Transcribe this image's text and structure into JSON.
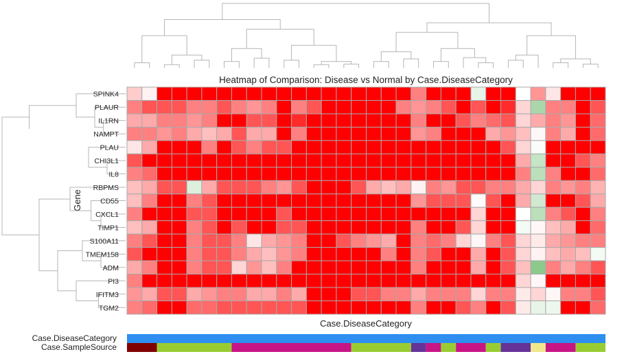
{
  "chart_data": {
    "type": "heatmap",
    "title": "Heatmap of Comparison: Disease vs Normal by Case.DiseaseCategory",
    "xlabel": "Case.DiseaseCategory",
    "ylabel": "Gene",
    "rows": [
      "SPINK4",
      "PLAUR",
      "IL1RN",
      "NAMPT",
      "PLAU",
      "CHI3L1",
      "IL8",
      "RBPMS",
      "CD55",
      "CXCL1",
      "TIMP1",
      "S100A11",
      "TMEM158",
      "ADM",
      "PI3",
      "IFITM3",
      "TGM2"
    ],
    "n_columns": 32,
    "value_scale": {
      "min": -2,
      "max": 6,
      "colors": {
        "negative": "#8dc98d",
        "zero": "#ffffff",
        "positive": "#ff0000"
      }
    },
    "values": [
      [
        1.2,
        0.3,
        6,
        6,
        6,
        6,
        6,
        6,
        6,
        6,
        6,
        6,
        6,
        6,
        6,
        6,
        6,
        6,
        6,
        3,
        6,
        6,
        6,
        -0.4,
        6,
        6,
        0,
        2.5,
        0.6,
        6,
        6,
        6
      ],
      [
        3,
        4,
        4,
        4,
        3,
        3,
        4,
        3,
        2.5,
        3,
        6,
        3,
        4,
        6,
        6,
        6,
        6,
        6,
        3,
        2.5,
        3,
        4,
        6,
        4,
        6,
        5,
        1,
        -1.5,
        3,
        3,
        6,
        4
      ],
      [
        2,
        2,
        3,
        3,
        2.5,
        3,
        6,
        6,
        4,
        4,
        6,
        5,
        6,
        6,
        6,
        6,
        6,
        6,
        6,
        3,
        6,
        6,
        4,
        3,
        3.5,
        4,
        1,
        2,
        3,
        2.5,
        6,
        3.5
      ],
      [
        3,
        3,
        2.5,
        3,
        2,
        1.5,
        2,
        4,
        2,
        2,
        6,
        3,
        6,
        6,
        6,
        6,
        6,
        6,
        6,
        2.5,
        3,
        6,
        6,
        6,
        2,
        2.5,
        1.5,
        0.2,
        3,
        2,
        6,
        3.5
      ],
      [
        0.6,
        2,
        6,
        6,
        6,
        3,
        6,
        4,
        3,
        4,
        4,
        6,
        6,
        6,
        6,
        6,
        6,
        6,
        6,
        6,
        6,
        6,
        6,
        6,
        6,
        4,
        1,
        -0.1,
        6,
        6,
        6,
        6
      ],
      [
        4,
        6,
        6,
        6,
        6,
        6,
        6,
        6,
        6,
        6,
        6,
        6,
        6,
        6,
        6,
        6,
        6,
        6,
        6,
        6,
        6,
        6,
        6,
        6,
        6,
        6,
        2,
        -1,
        6,
        6,
        4,
        3
      ],
      [
        3,
        3.5,
        6,
        6,
        6,
        6,
        6,
        6,
        6,
        6,
        6,
        6,
        6,
        6,
        6,
        6,
        6,
        6,
        6,
        6,
        6,
        6,
        6,
        6,
        6,
        6,
        3,
        -1.2,
        3,
        6,
        6,
        3.5
      ],
      [
        1.5,
        2,
        4,
        4,
        -0.6,
        2,
        4,
        4,
        4,
        3,
        2.5,
        4,
        6,
        6,
        6,
        4,
        2,
        1.5,
        2,
        0.3,
        3,
        2.5,
        4,
        4,
        3,
        3,
        2,
        1,
        3,
        2.5,
        3,
        1.8
      ],
      [
        1.5,
        3,
        6,
        6,
        3,
        4,
        6,
        6,
        6,
        6,
        6,
        6,
        6,
        6,
        6,
        6,
        6,
        6,
        6,
        2.5,
        4,
        4,
        4,
        0.1,
        4,
        6,
        2,
        -0.8,
        6,
        6,
        4,
        2
      ],
      [
        3,
        6,
        6,
        6,
        4,
        4,
        6,
        6,
        6,
        6,
        4,
        6,
        6,
        6,
        6,
        6,
        6,
        6,
        6,
        6,
        6,
        6,
        6,
        1,
        6,
        6,
        0,
        -1.2,
        3,
        4,
        6,
        3
      ],
      [
        1.5,
        2,
        6,
        6,
        3,
        4,
        6,
        4,
        6,
        6,
        4,
        4,
        6,
        6,
        6,
        6,
        6,
        6,
        6,
        3,
        6,
        6,
        4,
        1,
        6,
        6,
        -0.2,
        0.2,
        1.5,
        2,
        6,
        3.5
      ],
      [
        3,
        4,
        6,
        6,
        3,
        4,
        4,
        3,
        0.6,
        2,
        2.5,
        3,
        6,
        6,
        4,
        3,
        2.5,
        2,
        6,
        3,
        3.5,
        3,
        1,
        0.2,
        3,
        4,
        1,
        0.5,
        2,
        2.5,
        3,
        3
      ],
      [
        4,
        6,
        6,
        6,
        3,
        4,
        4,
        3,
        2,
        1.5,
        2.5,
        3,
        6,
        6,
        6,
        6,
        6,
        3,
        6,
        3,
        4,
        6,
        6,
        2,
        6,
        4,
        1,
        0.3,
        1.5,
        2,
        1.5,
        -0.2
      ],
      [
        2,
        3,
        6,
        6,
        3,
        4,
        4,
        1,
        2.5,
        1.5,
        3,
        6,
        6,
        6,
        6,
        6,
        6,
        6,
        6,
        3,
        6,
        6,
        6,
        2,
        6,
        4,
        1.5,
        -2,
        3,
        2,
        3,
        4
      ],
      [
        3,
        6,
        6,
        6,
        6,
        6,
        6,
        6,
        6,
        6,
        6,
        6,
        6,
        6,
        6,
        6,
        6,
        6,
        6,
        6,
        6,
        6,
        6,
        6,
        6,
        6,
        1,
        0.2,
        6,
        6,
        6,
        6
      ],
      [
        2.5,
        2,
        4,
        4,
        2,
        2.5,
        3,
        3,
        2,
        2,
        3,
        2,
        6,
        6,
        6,
        4,
        4,
        3,
        3,
        2,
        3,
        3,
        3,
        1,
        3,
        3,
        0.5,
        1,
        0.2,
        3,
        3,
        4
      ],
      [
        3,
        3.5,
        6,
        6,
        3.5,
        3.5,
        4,
        4,
        4,
        4,
        4,
        4,
        6,
        6,
        6,
        6,
        6,
        6,
        6,
        3,
        6,
        6,
        4,
        3,
        6,
        4,
        0.5,
        -0.4,
        -0.3,
        6,
        6,
        3.5
      ]
    ],
    "annotation_tracks": [
      {
        "name": "Case.DiseaseCategory",
        "categories": [
          {
            "color": "#2e8ff0",
            "span": 32
          }
        ]
      },
      {
        "name": "Case.SampleSource",
        "categories": [
          {
            "color": "#800000",
            "span": 2
          },
          {
            "color": "#99cc33",
            "span": 5
          },
          {
            "color": "#c71585",
            "span": 8
          },
          {
            "color": "#99cc33",
            "span": 4
          },
          {
            "color": "#663399",
            "span": 1
          },
          {
            "color": "#c71585",
            "span": 1
          },
          {
            "color": "#99cc33",
            "span": 1
          },
          {
            "color": "#c71585",
            "span": 2
          },
          {
            "color": "#99cc33",
            "span": 1
          },
          {
            "color": "#663399",
            "span": 2
          },
          {
            "color": "#f0e68c",
            "span": 1
          },
          {
            "color": "#c71585",
            "span": 2
          },
          {
            "color": "#99cc33",
            "span": 2
          }
        ]
      }
    ],
    "row_dendrogram": true,
    "column_dendrogram": true,
    "grid": true,
    "grid_color": "#a9a9a9"
  }
}
